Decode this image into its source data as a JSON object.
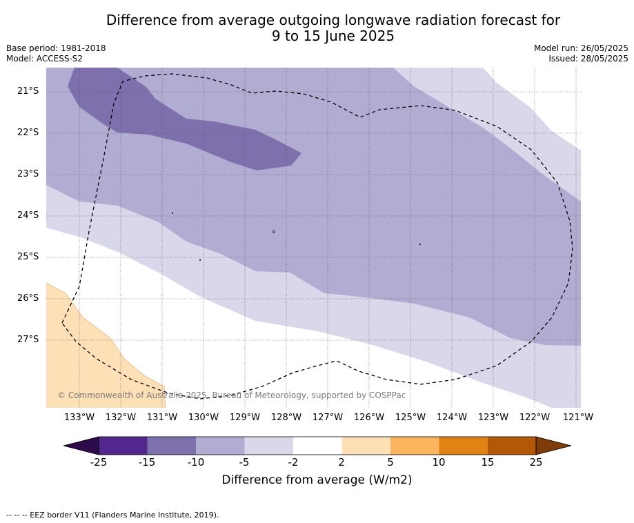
{
  "title_line1": "Difference from average outgoing longwave radiation forecast for",
  "title_line2": "9 to 15 June 2025",
  "base_period": "Base period: 1981-2018",
  "model": "Model: ACCESS-S2",
  "model_run": "Model run: 26/05/2025",
  "issued": "Issued: 28/05/2025",
  "latitudes": [
    "21°S",
    "22°S",
    "23°S",
    "24°S",
    "25°S",
    "26°S",
    "27°S"
  ],
  "longitudes": [
    "133°W",
    "132°W",
    "131°W",
    "130°W",
    "129°W",
    "128°W",
    "127°W",
    "126°W",
    "125°W",
    "124°W",
    "123°W",
    "122°W",
    "121°W"
  ],
  "copyright": "© Commonwealth of Australia 2025, Bureau of Meteorology, supported by COSPPac",
  "colorbar": {
    "title": "Difference from average (W/m2)",
    "ticks": [
      "-25",
      "-15",
      "-10",
      "-5",
      "-2",
      "2",
      "5",
      "10",
      "15",
      "25"
    ],
    "colors": {
      "below_-25": "#2d0a4a",
      "-25_-15": "#54278f",
      "-15_-10": "#7d70ac",
      "-10_-5": "#b1acd2",
      "-5_-2": "#d9d8ea",
      "-2_2": "#ffffff",
      "2_5": "#fee0b6",
      "5_10": "#fbb55e",
      "10_15": "#e08214",
      "15_25": "#b35806",
      "above_25": "#7f3b08"
    }
  },
  "footnote": "--  --  -- EEZ border V11 (Flanders Marine Institute, 2019)."
}
